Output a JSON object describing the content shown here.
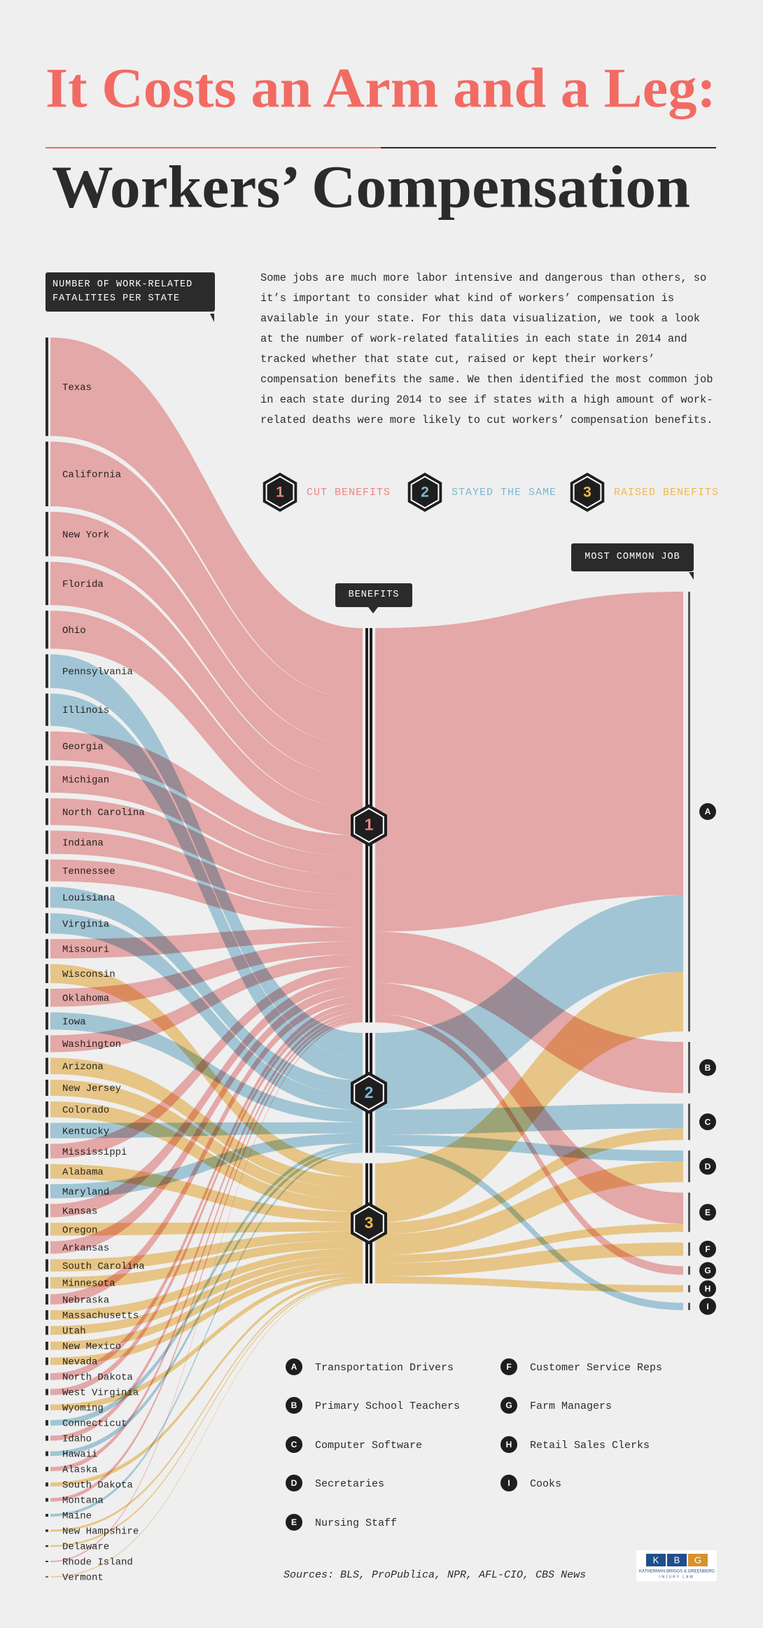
{
  "title": "It Costs an Arm and a Leg:",
  "subtitle": "Workers’ Compensation",
  "intro": "Some jobs are much more labor intensive and dangerous than others, so it’s important to consider what kind of workers’ compensation is available in your state. For this data visualization, we took a look at the number of work-related fatalities in each state in 2014 and tracked whether that state cut, raised or kept their workers’ compensation benefits the same. We then identified the most common job in each state during 2014 to see if states with a high amount of work-related deaths were more likely to cut workers’ compensation benefits.",
  "sources": "Sources: BLS, ProPublica, NPR, AFL-CIO, CBS News",
  "logo": {
    "letters": [
      "K",
      "B",
      "G"
    ],
    "name": "KATHERMAN BRIGGS & GREENBERG",
    "tagline": "INJURY LAW"
  },
  "chart_data": {
    "type": "sankey",
    "states_label": "NUMBER OF WORK-RELATED FATALITIES PER STATE",
    "benefits_label": "BENEFITS",
    "jobs_label": "MOST COMMON JOB",
    "benefits": [
      {
        "id": "1",
        "label": "CUT BENEFITS",
        "color": "#ec8482"
      },
      {
        "id": "2",
        "label": "STAYED THE SAME",
        "color": "#79b8d2"
      },
      {
        "id": "3",
        "label": "RAISED BENEFITS",
        "color": "#f0b84a"
      }
    ],
    "jobs": [
      {
        "id": "A",
        "name": "Transportation Drivers"
      },
      {
        "id": "B",
        "name": "Primary School Teachers"
      },
      {
        "id": "C",
        "name": "Computer Software"
      },
      {
        "id": "D",
        "name": "Secretaries"
      },
      {
        "id": "E",
        "name": "Nursing Staff"
      },
      {
        "id": "F",
        "name": "Customer Service Reps"
      },
      {
        "id": "G",
        "name": "Farm Managers"
      },
      {
        "id": "H",
        "name": "Retail Sales Clerks"
      },
      {
        "id": "I",
        "name": "Cooks"
      }
    ],
    "states": [
      {
        "name": "Texas",
        "value": 524,
        "benefit": "1",
        "job": "A"
      },
      {
        "name": "California",
        "value": 344,
        "benefit": "1",
        "job": "A"
      },
      {
        "name": "New York",
        "value": 236,
        "benefit": "1",
        "job": "B"
      },
      {
        "name": "Florida",
        "value": 230,
        "benefit": "1",
        "job": "E"
      },
      {
        "name": "Ohio",
        "value": 202,
        "benefit": "1",
        "job": "A"
      },
      {
        "name": "Pennsylvania",
        "value": 179,
        "benefit": "2",
        "job": "A"
      },
      {
        "name": "Illinois",
        "value": 172,
        "benefit": "2",
        "job": "A"
      },
      {
        "name": "Georgia",
        "value": 153,
        "benefit": "1",
        "job": "A"
      },
      {
        "name": "Michigan",
        "value": 143,
        "benefit": "1",
        "job": "B"
      },
      {
        "name": "North Carolina",
        "value": 142,
        "benefit": "1",
        "job": "A"
      },
      {
        "name": "Indiana",
        "value": 124,
        "benefit": "1",
        "job": "A"
      },
      {
        "name": "Tennessee",
        "value": 116,
        "benefit": "1",
        "job": "A"
      },
      {
        "name": "Louisiana",
        "value": 110,
        "benefit": "2",
        "job": "A"
      },
      {
        "name": "Virginia",
        "value": 108,
        "benefit": "2",
        "job": "C"
      },
      {
        "name": "Missouri",
        "value": 103,
        "benefit": "1",
        "job": "A"
      },
      {
        "name": "Wisconsin",
        "value": 101,
        "benefit": "3",
        "job": "A"
      },
      {
        "name": "Oklahoma",
        "value": 96,
        "benefit": "1",
        "job": "A"
      },
      {
        "name": "Iowa",
        "value": 92,
        "benefit": "2",
        "job": "A"
      },
      {
        "name": "Washington",
        "value": 90,
        "benefit": "1",
        "job": "A"
      },
      {
        "name": "Arizona",
        "value": 87,
        "benefit": "3",
        "job": "A"
      },
      {
        "name": "New Jersey",
        "value": 86,
        "benefit": "3",
        "job": "C"
      },
      {
        "name": "Colorado",
        "value": 84,
        "benefit": "3",
        "job": "D"
      },
      {
        "name": "Kentucky",
        "value": 82,
        "benefit": "2",
        "job": "D"
      },
      {
        "name": "Mississippi",
        "value": 78,
        "benefit": "1",
        "job": "A"
      },
      {
        "name": "Alabama",
        "value": 77,
        "benefit": "3",
        "job": "A"
      },
      {
        "name": "Maryland",
        "value": 75,
        "benefit": "2",
        "job": "C"
      },
      {
        "name": "Kansas",
        "value": 71,
        "benefit": "1",
        "job": "A"
      },
      {
        "name": "Oregon",
        "value": 68,
        "benefit": "3",
        "job": "D"
      },
      {
        "name": "Arkansas",
        "value": 66,
        "benefit": "1",
        "job": "A"
      },
      {
        "name": "South Carolina",
        "value": 65,
        "benefit": "3",
        "job": "A"
      },
      {
        "name": "Minnesota",
        "value": 61,
        "benefit": "3",
        "job": "E"
      },
      {
        "name": "Nebraska",
        "value": 55,
        "benefit": "1",
        "job": "A"
      },
      {
        "name": "Massachusetts",
        "value": 51,
        "benefit": "3",
        "job": "F"
      },
      {
        "name": "Utah",
        "value": 47,
        "benefit": "3",
        "job": "F"
      },
      {
        "name": "New Mexico",
        "value": 44,
        "benefit": "3",
        "job": "A"
      },
      {
        "name": "Nevada",
        "value": 40,
        "benefit": "3",
        "job": "H"
      },
      {
        "name": "North Dakota",
        "value": 36,
        "benefit": "1",
        "job": "G"
      },
      {
        "name": "West Virginia",
        "value": 33,
        "benefit": "1",
        "job": "A"
      },
      {
        "name": "Wyoming",
        "value": 31,
        "benefit": "3",
        "job": "A"
      },
      {
        "name": "Connecticut",
        "value": 29,
        "benefit": "2",
        "job": "I"
      },
      {
        "name": "Idaho",
        "value": 27,
        "benefit": "1",
        "job": "G"
      },
      {
        "name": "Hawaii",
        "value": 25,
        "benefit": "2",
        "job": "I"
      },
      {
        "name": "Alaska",
        "value": 23,
        "benefit": "1",
        "job": "A"
      },
      {
        "name": "South Dakota",
        "value": 21,
        "benefit": "3",
        "job": "A"
      },
      {
        "name": "Montana",
        "value": 19,
        "benefit": "1",
        "job": "A"
      },
      {
        "name": "Maine",
        "value": 15,
        "benefit": "2",
        "job": "A"
      },
      {
        "name": "New Hampshire",
        "value": 12,
        "benefit": "3",
        "job": "H"
      },
      {
        "name": "Delaware",
        "value": 9,
        "benefit": "3",
        "job": "A"
      },
      {
        "name": "Rhode Island",
        "value": 7,
        "benefit": "1",
        "job": "A"
      },
      {
        "name": "Vermont",
        "value": 5,
        "benefit": "3",
        "job": "A"
      }
    ]
  }
}
